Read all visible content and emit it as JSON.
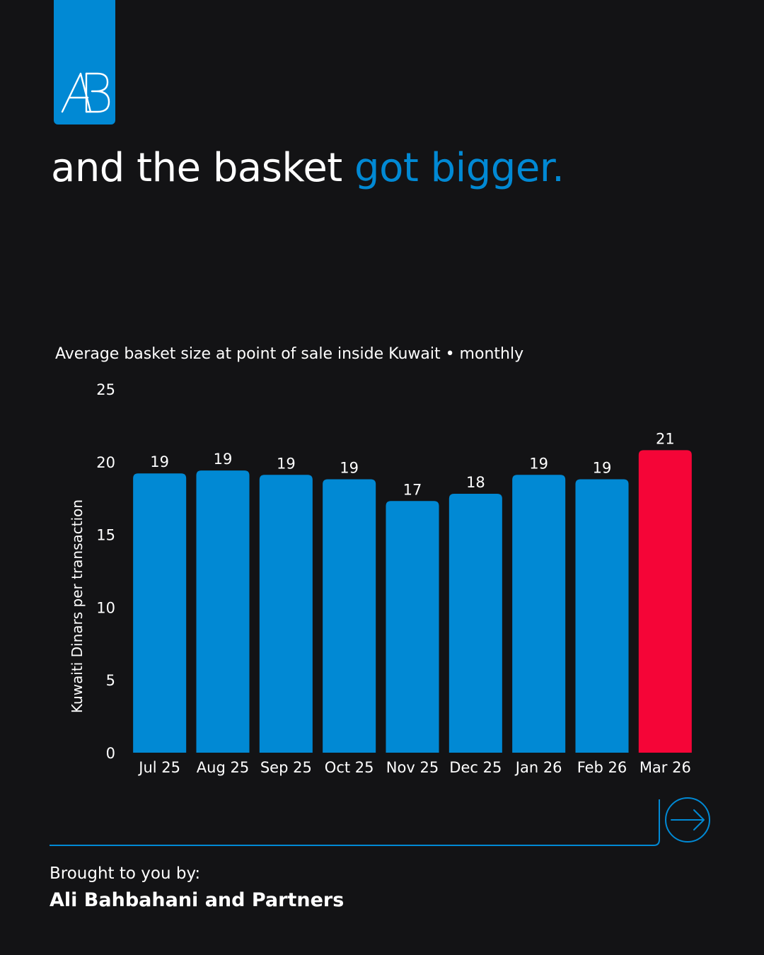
{
  "brand": {
    "accent": "#0189d4",
    "highlight": "#f50537",
    "background": "#131315"
  },
  "headline": {
    "main": "and the basket ",
    "accent": "got bigger."
  },
  "chart_data": {
    "type": "bar",
    "title": "Average basket size at point of sale inside Kuwait • monthly",
    "ylabel": "Kuwaiti Dinars per transaction",
    "xlabel": "",
    "ylim": [
      0,
      25
    ],
    "yticks": [
      "0",
      "5",
      "10",
      "15",
      "20",
      "25"
    ],
    "grid": false,
    "categories": [
      "Jul 25",
      "Aug 25",
      "Sep 25",
      "Oct 25",
      "Nov 25",
      "Dec 25",
      "Jan 26",
      "Feb 26",
      "Mar 26"
    ],
    "values": [
      19.2,
      19.4,
      19.1,
      18.8,
      17.3,
      17.8,
      19.1,
      18.8,
      20.8
    ],
    "value_labels": [
      "19",
      "19",
      "19",
      "19",
      "17",
      "18",
      "19",
      "19",
      "21"
    ],
    "colors": [
      "#0189d4",
      "#0189d4",
      "#0189d4",
      "#0189d4",
      "#0189d4",
      "#0189d4",
      "#0189d4",
      "#0189d4",
      "#f50537"
    ]
  },
  "footer": {
    "brought_label": "Brought to you by:",
    "company": "Ali Bahbahani and Partners",
    "next_icon": "arrow-right-circle-icon",
    "logo_icon": "ab-logo-icon"
  }
}
